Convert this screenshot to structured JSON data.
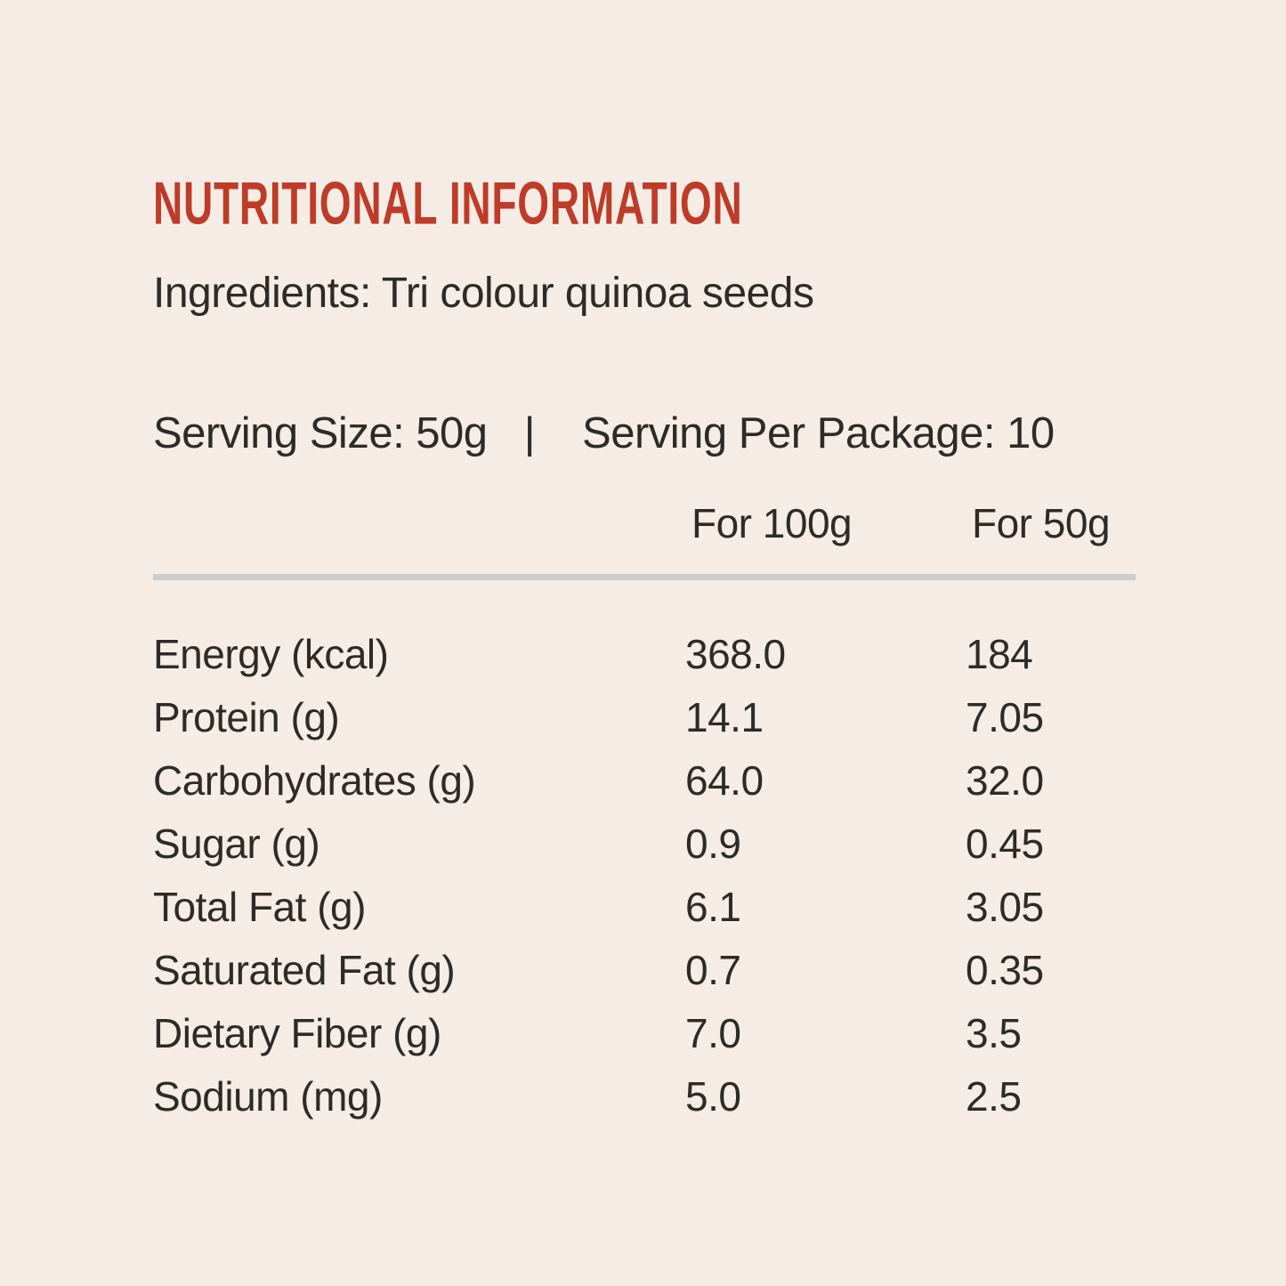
{
  "title": "NUTRITIONAL INFORMATION",
  "ingredients": "Ingredients: Tri colour quinoa seeds",
  "serving": {
    "size_label": "Serving Size: 50g",
    "separator": "|",
    "package_label": "Serving Per Package: 10"
  },
  "table": {
    "columns": [
      "For 100g",
      "For 50g"
    ],
    "rows": [
      {
        "label": "Energy (kcal)",
        "per100g": "368.0",
        "per50g": "184"
      },
      {
        "label": "Protein (g)",
        "per100g": "14.1",
        "per50g": "7.05"
      },
      {
        "label": "Carbohydrates (g)",
        "per100g": "64.0",
        "per50g": "32.0"
      },
      {
        "label": "Sugar (g)",
        "per100g": "0.9",
        "per50g": "0.45"
      },
      {
        "label": "Total Fat (g)",
        "per100g": "6.1",
        "per50g": "3.05"
      },
      {
        "label": "Saturated Fat (g)",
        "per100g": "0.7",
        "per50g": "0.35"
      },
      {
        "label": "Dietary Fiber (g)",
        "per100g": "7.0",
        "per50g": "3.5"
      },
      {
        "label": "Sodium (mg)",
        "per100g": "5.0",
        "per50g": "2.5"
      }
    ]
  },
  "colors": {
    "background": "#F5EDE5",
    "accent": "#BE3B28",
    "text": "#2D2A27",
    "divider": "#CBCDCE"
  }
}
